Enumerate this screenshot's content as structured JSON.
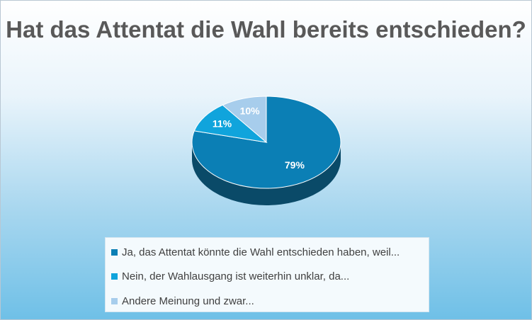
{
  "chart_data": {
    "type": "pie",
    "title": "Hat das Attentat die Wahl bereits entschieden?",
    "series": [
      {
        "values": [
          79,
          11,
          10
        ],
        "labels": [
          "79%",
          "11%",
          "10%"
        ],
        "colors": [
          "#0b7fb5",
          "#10a4dc",
          "#a7cdec"
        ]
      }
    ],
    "categories": [
      "Ja, das Attentat könnte die Wahl entschieden haben, weil...",
      "Nein, der Wahlausgang ist weiterhin unklar, da...",
      "Andere Meinung und zwar..."
    ],
    "legend_position": "bottom",
    "style": "3d"
  }
}
